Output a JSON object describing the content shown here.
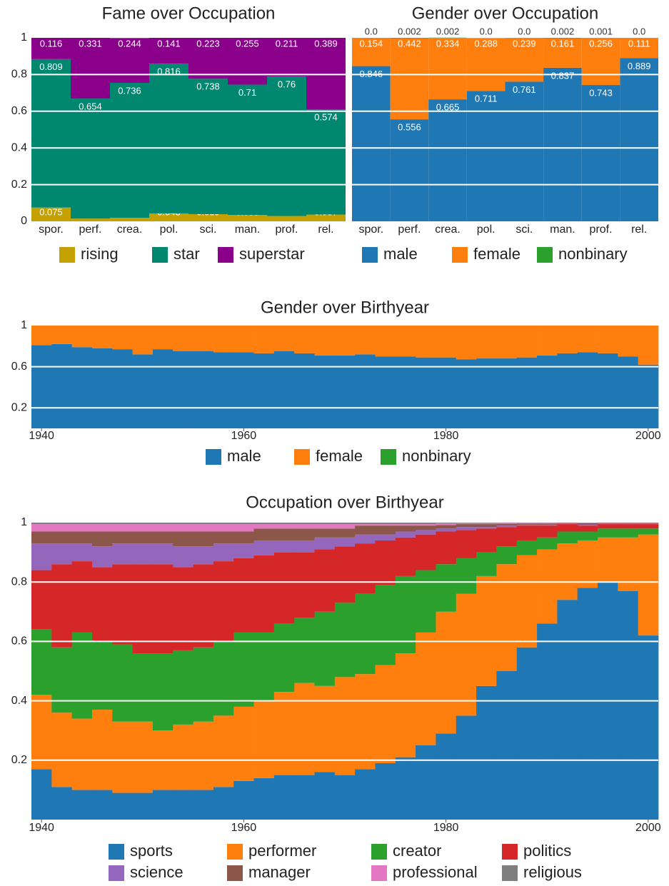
{
  "chart_data": [
    {
      "type": "bar",
      "title": "Fame over Occupation",
      "categories": [
        "spor.",
        "perf.",
        "crea.",
        "pol.",
        "sci.",
        "man.",
        "prof.",
        "rel."
      ],
      "series": [
        {
          "name": "rising",
          "color": "#c4a000",
          "values": [
            0.075,
            0.015,
            0.019,
            0.043,
            0.039,
            0.035,
            0.029,
            0.037
          ]
        },
        {
          "name": "star",
          "color": "#008770",
          "values": [
            0.809,
            0.654,
            0.736,
            0.816,
            0.738,
            0.71,
            0.76,
            0.574
          ]
        },
        {
          "name": "superstar",
          "color": "#8b008b",
          "values": [
            0.116,
            0.331,
            0.244,
            0.141,
            0.223,
            0.255,
            0.211,
            0.389
          ]
        }
      ],
      "ylim": [
        0,
        1
      ],
      "yticks": [
        0,
        0.2,
        0.4,
        0.6,
        0.8,
        1
      ],
      "grid": true,
      "show_ytick_labels": true
    },
    {
      "type": "bar",
      "title": "Gender over Occupation",
      "categories": [
        "spor.",
        "perf.",
        "crea.",
        "pol.",
        "sci.",
        "man.",
        "prof.",
        "rel."
      ],
      "series": [
        {
          "name": "male",
          "color": "#1f77b4",
          "values": [
            0.846,
            0.556,
            0.665,
            0.711,
            0.761,
            0.837,
            0.743,
            0.889
          ]
        },
        {
          "name": "female",
          "color": "#ff7f0e",
          "values": [
            0.154,
            0.442,
            0.334,
            0.288,
            0.239,
            0.161,
            0.256,
            0.111
          ]
        },
        {
          "name": "nonbinary",
          "color": "#2ca02c",
          "values": [
            0.0,
            0.002,
            0.002,
            0.0,
            0.0,
            0.002,
            0.001,
            0.0
          ],
          "value_labels": [
            "0.0",
            "0.002",
            "0.002",
            "0.0",
            "0.0",
            "0.002",
            "0.001",
            "0.0"
          ]
        }
      ],
      "ylim": [
        0,
        1
      ],
      "yticks": [
        0,
        0.2,
        0.4,
        0.6,
        0.8,
        1
      ],
      "grid": true,
      "show_ytick_labels": false
    },
    {
      "type": "area",
      "title": "Gender over Birthyear",
      "x": [
        1939,
        1941,
        1943,
        1945,
        1947,
        1949,
        1951,
        1953,
        1955,
        1957,
        1959,
        1961,
        1963,
        1965,
        1967,
        1969,
        1971,
        1973,
        1975,
        1977,
        1979,
        1981,
        1983,
        1985,
        1987,
        1989,
        1991,
        1993,
        1995,
        1997,
        1999
      ],
      "series": [
        {
          "name": "male",
          "color": "#1f77b4",
          "values": [
            0.81,
            0.82,
            0.79,
            0.78,
            0.77,
            0.72,
            0.77,
            0.75,
            0.75,
            0.74,
            0.74,
            0.73,
            0.75,
            0.73,
            0.71,
            0.71,
            0.72,
            0.7,
            0.7,
            0.69,
            0.69,
            0.67,
            0.68,
            0.68,
            0.69,
            0.71,
            0.73,
            0.74,
            0.73,
            0.7,
            0.62
          ]
        },
        {
          "name": "female",
          "color": "#ff7f0e",
          "values": [
            0.19,
            0.18,
            0.21,
            0.22,
            0.23,
            0.28,
            0.23,
            0.25,
            0.25,
            0.26,
            0.26,
            0.27,
            0.25,
            0.27,
            0.29,
            0.29,
            0.28,
            0.3,
            0.3,
            0.31,
            0.31,
            0.33,
            0.32,
            0.32,
            0.31,
            0.29,
            0.27,
            0.26,
            0.27,
            0.3,
            0.38
          ]
        },
        {
          "name": "nonbinary",
          "color": "#2ca02c",
          "values": [
            0,
            0,
            0,
            0,
            0,
            0,
            0,
            0,
            0,
            0,
            0,
            0,
            0,
            0,
            0,
            0,
            0,
            0,
            0,
            0,
            0,
            0,
            0,
            0,
            0,
            0,
            0,
            0,
            0,
            0,
            0
          ]
        }
      ],
      "xlim": [
        1939,
        2001
      ],
      "xticks": [
        1940,
        1960,
        1980,
        2000
      ],
      "ylim": [
        0,
        1
      ],
      "yticks": [
        0.2,
        0.6,
        1
      ],
      "grid": true,
      "show_ytick_labels": true
    },
    {
      "type": "area",
      "title": "Occupation over Birthyear",
      "x": [
        1939,
        1941,
        1943,
        1945,
        1947,
        1949,
        1951,
        1953,
        1955,
        1957,
        1959,
        1961,
        1963,
        1965,
        1967,
        1969,
        1971,
        1973,
        1975,
        1977,
        1979,
        1981,
        1983,
        1985,
        1987,
        1989,
        1991,
        1993,
        1995,
        1997,
        1999
      ],
      "series": [
        {
          "name": "sports",
          "color": "#1f77b4",
          "values": [
            0.17,
            0.11,
            0.1,
            0.1,
            0.09,
            0.09,
            0.1,
            0.1,
            0.1,
            0.11,
            0.13,
            0.14,
            0.15,
            0.15,
            0.16,
            0.15,
            0.17,
            0.19,
            0.21,
            0.25,
            0.29,
            0.35,
            0.45,
            0.5,
            0.58,
            0.66,
            0.74,
            0.78,
            0.8,
            0.77,
            0.62
          ]
        },
        {
          "name": "performer",
          "color": "#ff7f0e",
          "values": [
            0.25,
            0.25,
            0.24,
            0.27,
            0.24,
            0.24,
            0.2,
            0.22,
            0.23,
            0.24,
            0.25,
            0.26,
            0.28,
            0.31,
            0.29,
            0.33,
            0.32,
            0.33,
            0.35,
            0.38,
            0.41,
            0.41,
            0.37,
            0.36,
            0.31,
            0.25,
            0.19,
            0.16,
            0.15,
            0.18,
            0.34
          ]
        },
        {
          "name": "creator",
          "color": "#2ca02c",
          "values": [
            0.22,
            0.22,
            0.29,
            0.23,
            0.26,
            0.23,
            0.26,
            0.25,
            0.25,
            0.25,
            0.25,
            0.23,
            0.23,
            0.22,
            0.25,
            0.25,
            0.27,
            0.27,
            0.26,
            0.21,
            0.16,
            0.12,
            0.08,
            0.06,
            0.05,
            0.04,
            0.04,
            0.03,
            0.03,
            0.03,
            0.02
          ]
        },
        {
          "name": "politics",
          "color": "#d62728",
          "values": [
            0.2,
            0.28,
            0.24,
            0.25,
            0.27,
            0.3,
            0.3,
            0.28,
            0.28,
            0.27,
            0.25,
            0.26,
            0.24,
            0.22,
            0.21,
            0.19,
            0.17,
            0.15,
            0.13,
            0.12,
            0.11,
            0.095,
            0.08,
            0.065,
            0.05,
            0.04,
            0.025,
            0.02,
            0.015,
            0.015,
            0.015
          ]
        },
        {
          "name": "science",
          "color": "#9467bd",
          "values": [
            0.09,
            0.07,
            0.06,
            0.07,
            0.07,
            0.07,
            0.07,
            0.07,
            0.06,
            0.06,
            0.05,
            0.05,
            0.04,
            0.04,
            0.04,
            0.03,
            0.03,
            0.02,
            0.02,
            0.015,
            0.01,
            0.01,
            0.005,
            0.005,
            0.003,
            0.003,
            0.002,
            0.004,
            0.002,
            0.002,
            0.002
          ]
        },
        {
          "name": "manager",
          "color": "#8c564b",
          "values": [
            0.04,
            0.04,
            0.04,
            0.05,
            0.04,
            0.04,
            0.04,
            0.05,
            0.05,
            0.04,
            0.04,
            0.04,
            0.04,
            0.04,
            0.03,
            0.03,
            0.03,
            0.03,
            0.02,
            0.015,
            0.012,
            0.01,
            0.01,
            0.006,
            0.004,
            0.004,
            0.002,
            0.004,
            0.002,
            0.002,
            0.002
          ]
        },
        {
          "name": "professional",
          "color": "#e377c2",
          "values": [
            0.025,
            0.025,
            0.025,
            0.025,
            0.025,
            0.025,
            0.025,
            0.025,
            0.025,
            0.025,
            0.025,
            0.015,
            0.015,
            0.015,
            0.015,
            0.015,
            0.005,
            0.005,
            0.005,
            0.005,
            0.005,
            0.003,
            0.003,
            0.003,
            0.002,
            0.002,
            0.001,
            0.001,
            0.001,
            0.001,
            0.001
          ]
        },
        {
          "name": "religious",
          "color": "#7f7f7f",
          "values": [
            0.005,
            0.005,
            0.005,
            0.005,
            0.005,
            0.005,
            0.005,
            0.005,
            0.005,
            0.005,
            0.005,
            0.005,
            0.005,
            0.005,
            0.005,
            0.005,
            0.005,
            0.005,
            0.005,
            0.005,
            0.003,
            0.002,
            0.002,
            0.001,
            0.001,
            0.001,
            0,
            0.001,
            0,
            0,
            0
          ]
        }
      ],
      "xlim": [
        1939,
        2001
      ],
      "xticks": [
        1940,
        1960,
        1980,
        2000
      ],
      "ylim": [
        0,
        1
      ],
      "yticks": [
        0.2,
        0.4,
        0.6,
        0.8,
        1
      ],
      "grid": true,
      "show_ytick_labels": true
    }
  ]
}
